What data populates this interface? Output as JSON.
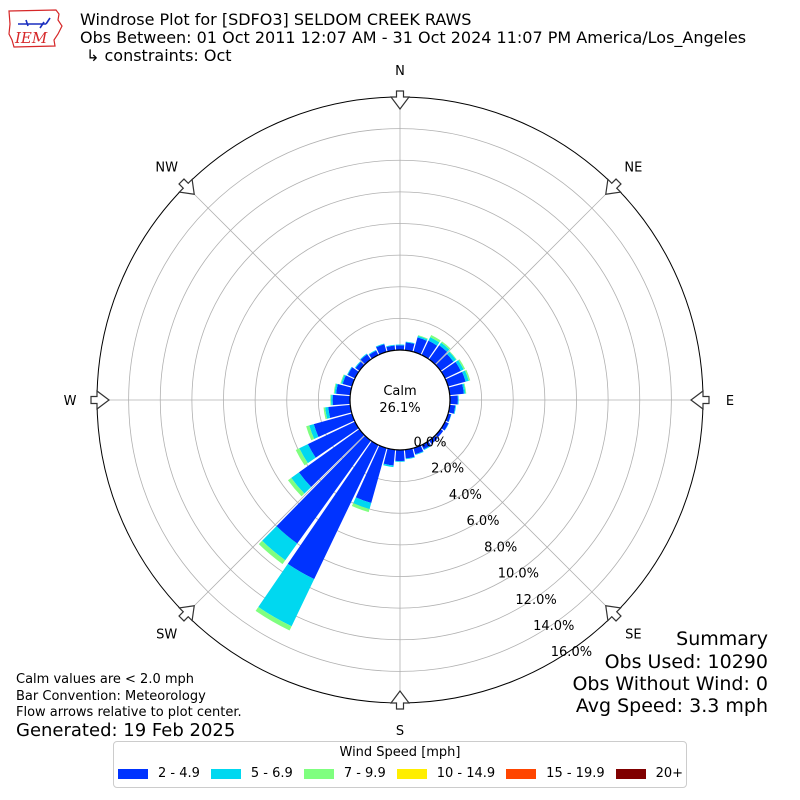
{
  "logo": {
    "text": "IEM",
    "color": "#d62728"
  },
  "header": {
    "title": "Windrose Plot for [SDFO3] SELDOM CREEK RAWS",
    "obs_range": "Obs Between: 01 Oct 2011 12:07 AM - 31 Oct 2024 11:07 PM America/Los_Angeles",
    "constraints": "↳ constraints: Oct"
  },
  "chart_data": {
    "type": "windrose",
    "bar_convention": "meteorology",
    "calm_label": "Calm",
    "calm_percent": "26.1%",
    "directions": [
      "N",
      "NE",
      "E",
      "SE",
      "S",
      "SW",
      "W",
      "NW"
    ],
    "radial_ticks": [
      "0.0%",
      "2.0%",
      "4.0%",
      "6.0%",
      "8.0%",
      "10.0%",
      "12.0%",
      "14.0%",
      "16.0%"
    ],
    "rlim": [
      0,
      16
    ],
    "grid": true,
    "legend_placement": "bottom",
    "sector_width_deg": 10,
    "speed_bins": [
      {
        "label": "2 - 4.9",
        "color": "#0033ff"
      },
      {
        "label": "5 - 6.9",
        "color": "#00d8f0"
      },
      {
        "label": "7 - 9.9",
        "color": "#7fff7f"
      },
      {
        "label": "10 - 14.9",
        "color": "#ffee00"
      },
      {
        "label": "15 - 19.9",
        "color": "#ff4500"
      },
      {
        "label": "20+",
        "color": "#800000"
      }
    ],
    "sectors": [
      {
        "dir": 0,
        "values": [
          0.3,
          0.05,
          0,
          0,
          0,
          0
        ]
      },
      {
        "dir": 10,
        "values": [
          0.5,
          0.05,
          0,
          0,
          0,
          0
        ]
      },
      {
        "dir": 20,
        "values": [
          0.95,
          0.1,
          0.05,
          0,
          0,
          0
        ]
      },
      {
        "dir": 30,
        "values": [
          1.0,
          0.25,
          0.15,
          0,
          0,
          0
        ]
      },
      {
        "dir": 40,
        "values": [
          1.1,
          0.2,
          0.1,
          0,
          0,
          0
        ]
      },
      {
        "dir": 50,
        "values": [
          1.0,
          0.2,
          0.05,
          0,
          0,
          0
        ]
      },
      {
        "dir": 60,
        "values": [
          1.1,
          0.2,
          0.1,
          0,
          0,
          0
        ]
      },
      {
        "dir": 70,
        "values": [
          1.15,
          0.2,
          0.1,
          0,
          0,
          0
        ]
      },
      {
        "dir": 80,
        "values": [
          0.9,
          0.1,
          0.05,
          0,
          0,
          0
        ]
      },
      {
        "dir": 90,
        "values": [
          0.5,
          0.05,
          0,
          0,
          0,
          0
        ]
      },
      {
        "dir": 100,
        "values": [
          0.35,
          0.05,
          0,
          0,
          0,
          0
        ]
      },
      {
        "dir": 110,
        "values": [
          0.2,
          0.02,
          0,
          0,
          0,
          0
        ]
      },
      {
        "dir": 120,
        "values": [
          0.25,
          0.02,
          0,
          0,
          0,
          0
        ]
      },
      {
        "dir": 130,
        "values": [
          0.2,
          0,
          0,
          0,
          0,
          0
        ]
      },
      {
        "dir": 140,
        "values": [
          0.25,
          0,
          0,
          0,
          0,
          0
        ]
      },
      {
        "dir": 150,
        "values": [
          0.3,
          0.05,
          0,
          0,
          0,
          0
        ]
      },
      {
        "dir": 160,
        "values": [
          0.4,
          0.05,
          0,
          0,
          0,
          0
        ]
      },
      {
        "dir": 170,
        "values": [
          0.55,
          0.05,
          0,
          0,
          0,
          0
        ]
      },
      {
        "dir": 180,
        "values": [
          0.7,
          0.05,
          0,
          0,
          0,
          0
        ]
      },
      {
        "dir": 190,
        "values": [
          1.0,
          0.1,
          0,
          0,
          0,
          0
        ]
      },
      {
        "dir": 200,
        "values": [
          3.6,
          0.4,
          0.2,
          0,
          0,
          0
        ]
      },
      {
        "dir": 210,
        "values": [
          9.4,
          3.3,
          0.3,
          0,
          0,
          0
        ]
      },
      {
        "dir": 220,
        "values": [
          8.0,
          1.3,
          0.3,
          0,
          0,
          0
        ]
      },
      {
        "dir": 230,
        "values": [
          4.7,
          0.6,
          0.25,
          0,
          0,
          0
        ]
      },
      {
        "dir": 240,
        "values": [
          3.3,
          0.6,
          0.25,
          0,
          0,
          0
        ]
      },
      {
        "dir": 250,
        "values": [
          2.5,
          0.3,
          0.2,
          0,
          0,
          0
        ]
      },
      {
        "dir": 260,
        "values": [
          1.4,
          0.2,
          0.1,
          0,
          0,
          0
        ]
      },
      {
        "dir": 270,
        "values": [
          1.1,
          0.1,
          0.05,
          0,
          0,
          0
        ]
      },
      {
        "dir": 280,
        "values": [
          0.9,
          0.1,
          0.05,
          0,
          0,
          0
        ]
      },
      {
        "dir": 290,
        "values": [
          0.6,
          0.1,
          0.05,
          0,
          0,
          0
        ]
      },
      {
        "dir": 300,
        "values": [
          0.5,
          0.05,
          0,
          0,
          0,
          0
        ]
      },
      {
        "dir": 310,
        "values": [
          0.3,
          0.05,
          0,
          0,
          0,
          0
        ]
      },
      {
        "dir": 320,
        "values": [
          0.4,
          0.05,
          0,
          0,
          0,
          0
        ]
      },
      {
        "dir": 330,
        "values": [
          0.3,
          0.05,
          0,
          0,
          0,
          0
        ]
      },
      {
        "dir": 340,
        "values": [
          0.5,
          0.05,
          0,
          0,
          0,
          0
        ]
      },
      {
        "dir": 350,
        "values": [
          0.3,
          0.05,
          0,
          0,
          0,
          0
        ]
      }
    ]
  },
  "notes": {
    "calm": "Calm values are < 2.0 mph",
    "bar_convention": "Bar Convention: Meteorology",
    "flow_arrows": "Flow arrows relative to plot center.",
    "generated": "Generated: 19 Feb 2025"
  },
  "summary": {
    "title": "Summary",
    "obs_used": "Obs Used: 10290",
    "obs_without_wind": "Obs Without Wind: 0",
    "avg_speed": "Avg Speed: 3.3 mph"
  },
  "legend": {
    "title": "Wind Speed [mph]"
  }
}
